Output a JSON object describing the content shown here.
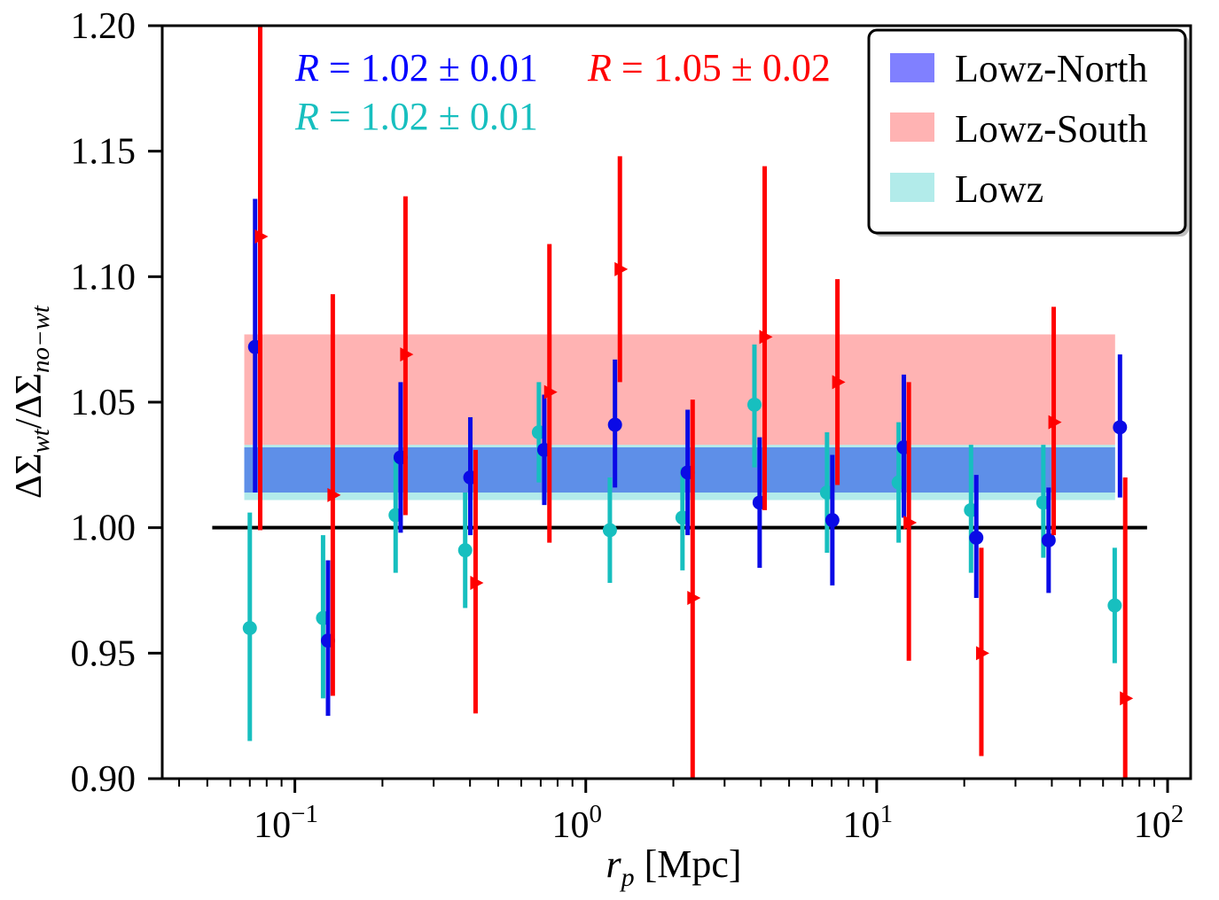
{
  "chart_data": {
    "type": "scatter",
    "xscale": "log",
    "xlim": [
      0.035,
      120
    ],
    "ylim": [
      0.9,
      1.2
    ],
    "x_ticks": [
      {
        "value": 0.1,
        "base": "10",
        "exp": "−1"
      },
      {
        "value": 1,
        "base": "10",
        "exp": "0"
      },
      {
        "value": 10,
        "base": "10",
        "exp": "1"
      },
      {
        "value": 100,
        "base": "10",
        "exp": "2"
      }
    ],
    "y_ticks": [
      {
        "value": 0.9,
        "label": "0.90"
      },
      {
        "value": 0.95,
        "label": "0.95"
      },
      {
        "value": 1.0,
        "label": "1.00"
      },
      {
        "value": 1.05,
        "label": "1.05"
      },
      {
        "value": 1.1,
        "label": "1.10"
      },
      {
        "value": 1.15,
        "label": "1.15"
      },
      {
        "value": 1.2,
        "label": "1.20"
      }
    ],
    "xlabel": {
      "var": "r",
      "sub": "p",
      "unit": " [Mpc]"
    },
    "ylabel": {
      "sym1": "ΔΣ",
      "sub1": "wt",
      "sep": "/",
      "sym2": "ΔΣ",
      "sub2": "no−wt"
    },
    "reference_line": {
      "y": 1.0,
      "x_range": [
        0.052,
        85
      ],
      "color": "#000000"
    },
    "bands": [
      {
        "name": "Lowz",
        "y_range": [
          1.011,
          1.033
        ],
        "x_range": [
          0.067,
          66
        ],
        "color": "#b2ebea"
      },
      {
        "name": "Lowz-South",
        "y_range": [
          1.033,
          1.077
        ],
        "x_range": [
          0.067,
          66
        ],
        "color": "#ffb3b3"
      },
      {
        "name": "Lowz-North",
        "y_range": [
          1.014,
          1.032
        ],
        "x_range": [
          0.067,
          66
        ],
        "color": "#5e8fe8"
      }
    ],
    "series": [
      {
        "name": "Lowz",
        "color": "#17bfbf",
        "marker": "circle",
        "x": [
          0.07,
          0.125,
          0.222,
          0.385,
          0.69,
          1.21,
          2.15,
          3.8,
          6.75,
          11.9,
          21.1,
          37.4,
          65.8
        ],
        "y": [
          0.96,
          0.964,
          1.005,
          0.991,
          1.038,
          0.999,
          1.004,
          1.049,
          1.014,
          1.018,
          1.007,
          1.01,
          0.969
        ],
        "ylow": [
          0.915,
          0.932,
          0.982,
          0.968,
          1.018,
          0.978,
          0.983,
          1.024,
          0.99,
          0.994,
          0.982,
          0.988,
          0.946
        ],
        "yhigh": [
          1.006,
          0.997,
          1.029,
          1.014,
          1.058,
          1.02,
          1.024,
          1.073,
          1.038,
          1.042,
          1.033,
          1.033,
          0.992
        ]
      },
      {
        "name": "Lowz-North",
        "color": "#0a0ae6",
        "marker": "circle",
        "x": [
          0.073,
          0.13,
          0.231,
          0.401,
          0.72,
          1.26,
          2.24,
          3.96,
          7.04,
          12.4,
          22.0,
          39.0,
          68.6
        ],
        "y": [
          1.072,
          0.955,
          1.028,
          1.02,
          1.031,
          1.041,
          1.022,
          1.01,
          1.003,
          1.032,
          0.996,
          0.995,
          1.04
        ],
        "ylow": [
          1.014,
          0.925,
          0.998,
          0.997,
          1.009,
          1.016,
          0.997,
          0.984,
          0.977,
          1.004,
          0.972,
          0.974,
          1.012
        ],
        "yhigh": [
          1.131,
          0.987,
          1.058,
          1.044,
          1.053,
          1.067,
          1.047,
          1.036,
          1.029,
          1.061,
          1.021,
          1.016,
          1.069
        ]
      },
      {
        "name": "Lowz-South",
        "color": "#ff0000",
        "marker": "triangle-right",
        "x": [
          0.076,
          0.135,
          0.24,
          0.418,
          0.75,
          1.31,
          2.33,
          4.12,
          7.33,
          12.9,
          22.9,
          40.6,
          71.5
        ],
        "y": [
          1.116,
          1.013,
          1.069,
          0.978,
          1.054,
          1.103,
          0.972,
          1.076,
          1.058,
          1.002,
          0.95,
          1.042,
          0.932
        ],
        "ylow": [
          0.999,
          0.933,
          1.005,
          0.926,
          0.994,
          1.058,
          0.9,
          1.007,
          1.017,
          0.947,
          0.909,
          0.997,
          0.9
        ],
        "yhigh": [
          1.2,
          1.093,
          1.132,
          1.031,
          1.113,
          1.148,
          1.051,
          1.144,
          1.099,
          1.058,
          0.992,
          1.088,
          1.02
        ]
      }
    ],
    "annotations": [
      {
        "key": "north",
        "var": "R",
        "text": " = 1.02 ± 0.01",
        "color": "#0000ff"
      },
      {
        "key": "south",
        "var": "R",
        "text": " = 1.05 ± 0.02",
        "color": "#ff0000"
      },
      {
        "key": "all",
        "var": "R",
        "text": " = 1.02 ± 0.01",
        "color": "#17bfbf"
      }
    ],
    "legend": {
      "position": "top-right",
      "entries": [
        {
          "label": "Lowz-North",
          "color": "#8080ff"
        },
        {
          "label": "Lowz-South",
          "color": "#ffb3b3"
        },
        {
          "label": "Lowz",
          "color": "#b2ebea"
        }
      ]
    }
  }
}
